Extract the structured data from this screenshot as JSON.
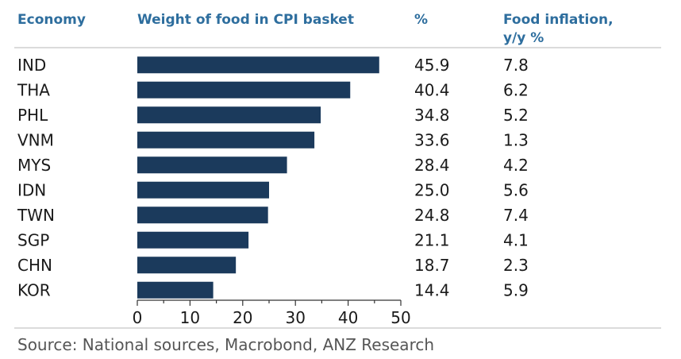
{
  "chart_data": {
    "type": "bar",
    "orientation": "horizontal",
    "columns": {
      "economy": "Economy",
      "weight": "Weight of food in CPI basket",
      "percent": "%",
      "inflation_line1": "Food inflation,",
      "inflation_line2": "y/y %"
    },
    "categories": [
      "IND",
      "THA",
      "PHL",
      "VNM",
      "MYS",
      "IDN",
      "TWN",
      "SGP",
      "CHN",
      "KOR"
    ],
    "values": [
      45.9,
      40.4,
      34.8,
      33.6,
      28.4,
      25.0,
      24.8,
      21.1,
      18.7,
      14.4
    ],
    "value_labels": [
      "45.9",
      "40.4",
      "34.8",
      "33.6",
      "28.4",
      "25.0",
      "24.8",
      "21.1",
      "18.7",
      "14.4"
    ],
    "food_inflation": [
      "7.8",
      "6.2",
      "5.2",
      "1.3",
      "4.2",
      "5.6",
      "7.4",
      "4.1",
      "2.3",
      "5.9"
    ],
    "xlim": [
      0,
      50
    ],
    "xticks": [
      "0",
      "10",
      "20",
      "30",
      "40",
      "50"
    ],
    "bar_color": "#1b3a5c",
    "grid": false
  },
  "source": "Source: National sources, Macrobond, ANZ Research",
  "colors": {
    "header": "#2e6e9e",
    "separator": "#cfcfcf"
  }
}
